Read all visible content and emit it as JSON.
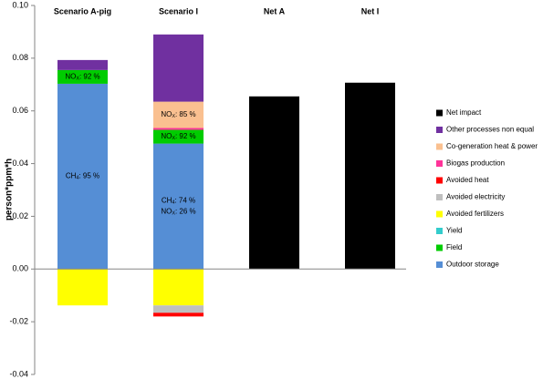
{
  "chart_data": {
    "type": "stacked-bar",
    "y_label": "person*ppm*h",
    "categories": [
      "Scenario A-pig",
      "Scenario  I",
      "Net A",
      "Net I"
    ],
    "ylim": [
      -0.04,
      0.1
    ],
    "yticks": [
      -0.04,
      -0.02,
      {
        "value": 0,
        "label": "0.00"
      },
      0.02,
      0.04,
      0.06,
      0.08,
      {
        "value": 0.1,
        "label": "0.10"
      }
    ],
    "legend": "right",
    "series": [
      {
        "name": "Outdoor storage",
        "color": "#558ed5",
        "values": [
          0.0703,
          0.0476,
          null,
          null
        ]
      },
      {
        "name": "Field",
        "color": "#00cc00",
        "values": [
          0.0052,
          0.0052,
          null,
          null
        ]
      },
      {
        "name": "Yield",
        "color": "#33cccc",
        "values": [
          null,
          null,
          null,
          null
        ]
      },
      {
        "name": "Avoided fertilizers",
        "color": "#ffff00",
        "values": [
          -0.0138,
          -0.0138,
          null,
          null
        ]
      },
      {
        "name": "Avoided electricity",
        "color": "#bfbfbf",
        "values": [
          null,
          -0.0028,
          null,
          null
        ]
      },
      {
        "name": "Avoided heat",
        "color": "#ff0000",
        "values": [
          null,
          -0.0014,
          null,
          null
        ]
      },
      {
        "name": "Biogas production",
        "color": "#ff3399",
        "values": [
          null,
          0.0007,
          null,
          null
        ]
      },
      {
        "name": "Co-generation heat & power",
        "color": "#fac090",
        "values": [
          null,
          0.01,
          null,
          null
        ]
      },
      {
        "name": "Other processes non equal",
        "color": "#7030a0",
        "values": [
          0.0038,
          0.0255,
          null,
          null
        ]
      },
      {
        "name": "Net impact",
        "color": "#000000",
        "values": [
          null,
          null,
          0.0655,
          0.0707
        ]
      }
    ],
    "annotations": [
      {
        "main": "NO",
        "sub": "X",
        "rest": ": 92 %"
      },
      {
        "main": "CH",
        "sub": "4",
        "rest": ": 95 %"
      },
      {
        "main": "NO",
        "sub": "X",
        "rest": ": 85 %"
      },
      {
        "main": "NO",
        "sub": "X",
        "rest": ": 92 %"
      },
      {
        "main": "CH",
        "sub": "4",
        "rest": ": 74 %"
      },
      {
        "main": "NO",
        "sub": "X",
        "rest": ": 26 %"
      }
    ]
  }
}
